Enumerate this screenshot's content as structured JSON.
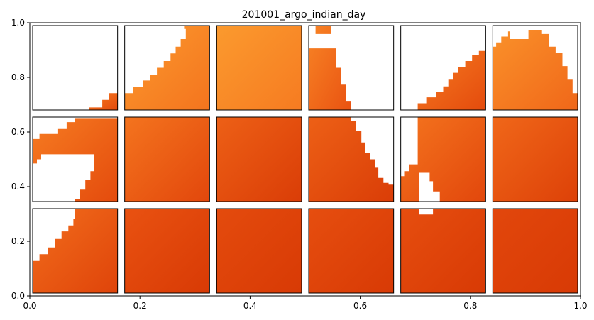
{
  "chart_data": {
    "type": "heatmap",
    "title": "201001_argo_indian_day",
    "xlabel": "",
    "ylabel": "",
    "xlim": [
      0,
      1
    ],
    "ylim": [
      0,
      1
    ],
    "x_ticks": [
      "0.0",
      "0.2",
      "0.4",
      "0.6",
      "0.8",
      "1.0"
    ],
    "y_ticks": [
      "0.0",
      "0.2",
      "0.4",
      "0.6",
      "0.8",
      "1.0"
    ],
    "grid": false,
    "colormap": [
      "#d83a05",
      "#e85010",
      "#f77d22",
      "#fb9a2e"
    ],
    "panel_grid": {
      "rows": 3,
      "cols": 6
    },
    "panels": [
      {
        "row": 0,
        "col": 0,
        "mask": "br-corner",
        "intensity": 0.5
      },
      {
        "row": 0,
        "col": 1,
        "mask": "rising",
        "intensity": 0.85
      },
      {
        "row": 0,
        "col": 2,
        "mask": "full",
        "intensity": 0.9
      },
      {
        "row": 0,
        "col": 3,
        "mask": "left-drop",
        "intensity": 0.6
      },
      {
        "row": 0,
        "col": 4,
        "mask": "rising-low",
        "intensity": 0.5
      },
      {
        "row": 0,
        "col": 5,
        "mask": "dome",
        "intensity": 0.75
      },
      {
        "row": 1,
        "col": 0,
        "mask": "left-band",
        "intensity": 0.5
      },
      {
        "row": 1,
        "col": 1,
        "mask": "full",
        "intensity": 0.45
      },
      {
        "row": 1,
        "col": 2,
        "mask": "full",
        "intensity": 0.3
      },
      {
        "row": 1,
        "col": 3,
        "mask": "falling",
        "intensity": 0.3
      },
      {
        "row": 1,
        "col": 4,
        "mask": "left-gap",
        "intensity": 0.45
      },
      {
        "row": 1,
        "col": 5,
        "mask": "full",
        "intensity": 0.35
      },
      {
        "row": 2,
        "col": 0,
        "mask": "low-left",
        "intensity": 0.4
      },
      {
        "row": 2,
        "col": 1,
        "mask": "full",
        "intensity": 0.2
      },
      {
        "row": 2,
        "col": 2,
        "mask": "full",
        "intensity": 0.1
      },
      {
        "row": 2,
        "col": 3,
        "mask": "full",
        "intensity": 0.15
      },
      {
        "row": 2,
        "col": 4,
        "mask": "top-notch",
        "intensity": 0.15
      },
      {
        "row": 2,
        "col": 5,
        "mask": "full",
        "intensity": 0.05
      }
    ]
  }
}
